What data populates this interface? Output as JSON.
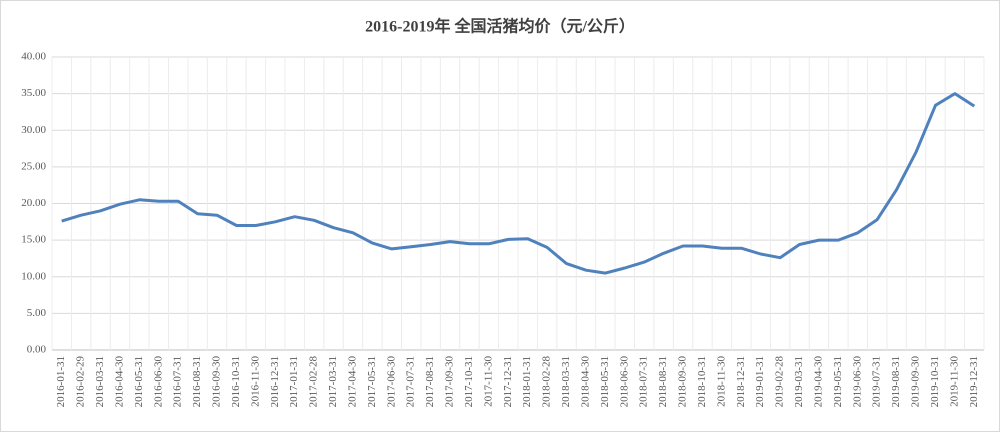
{
  "chart_data": {
    "type": "line",
    "title": "2016-2019年 全国活猪均价（元/公斤）",
    "categories": [
      "2016-01-31",
      "2016-02-29",
      "2016-03-31",
      "2016-04-30",
      "2016-05-31",
      "2016-06-30",
      "2016-07-31",
      "2016-08-31",
      "2016-09-30",
      "2016-10-31",
      "2016-11-30",
      "2016-12-31",
      "2017-01-31",
      "2017-02-28",
      "2017-03-31",
      "2017-04-30",
      "2017-05-31",
      "2017-06-30",
      "2017-07-31",
      "2017-08-31",
      "2017-09-30",
      "2017-10-31",
      "2017-11-30",
      "2017-12-31",
      "2018-01-31",
      "2018-02-28",
      "2018-03-31",
      "2018-04-30",
      "2018-05-31",
      "2018-06-30",
      "2018-07-31",
      "2018-08-31",
      "2018-09-30",
      "2018-10-31",
      "2018-11-30",
      "2018-12-31",
      "2019-01-31",
      "2019-02-28",
      "2019-03-31",
      "2019-04-30",
      "2019-05-31",
      "2019-06-30",
      "2019-07-31",
      "2019-08-31",
      "2019-09-30",
      "2019-10-31",
      "2019-11-30",
      "2019-12-31"
    ],
    "values": [
      17.6,
      18.4,
      19.0,
      19.9,
      20.5,
      20.3,
      20.3,
      18.6,
      18.4,
      17.0,
      17.0,
      17.5,
      18.2,
      17.7,
      16.7,
      16.0,
      14.6,
      13.8,
      14.1,
      14.4,
      14.8,
      14.5,
      14.5,
      15.1,
      15.2,
      14.0,
      11.8,
      10.9,
      10.5,
      11.2,
      12.0,
      13.2,
      14.2,
      14.2,
      13.9,
      13.9,
      13.1,
      12.6,
      14.4,
      15.0,
      15.0,
      16.0,
      17.8,
      21.9,
      27.0,
      33.4,
      35.0,
      33.3
    ],
    "color": "#4f81bd",
    "ylim": [
      0,
      40
    ],
    "yticks": [
      {
        "value": 0,
        "label": "0.00"
      },
      {
        "value": 5,
        "label": "5.00"
      },
      {
        "value": 10,
        "label": "10.00"
      },
      {
        "value": 15,
        "label": "15.00"
      },
      {
        "value": 20,
        "label": "20.00"
      },
      {
        "value": 25,
        "label": "25.00"
      },
      {
        "value": 30,
        "label": "30.00"
      },
      {
        "value": 35,
        "label": "35.00"
      },
      {
        "value": 40,
        "label": "40.00"
      }
    ],
    "grid": true
  }
}
